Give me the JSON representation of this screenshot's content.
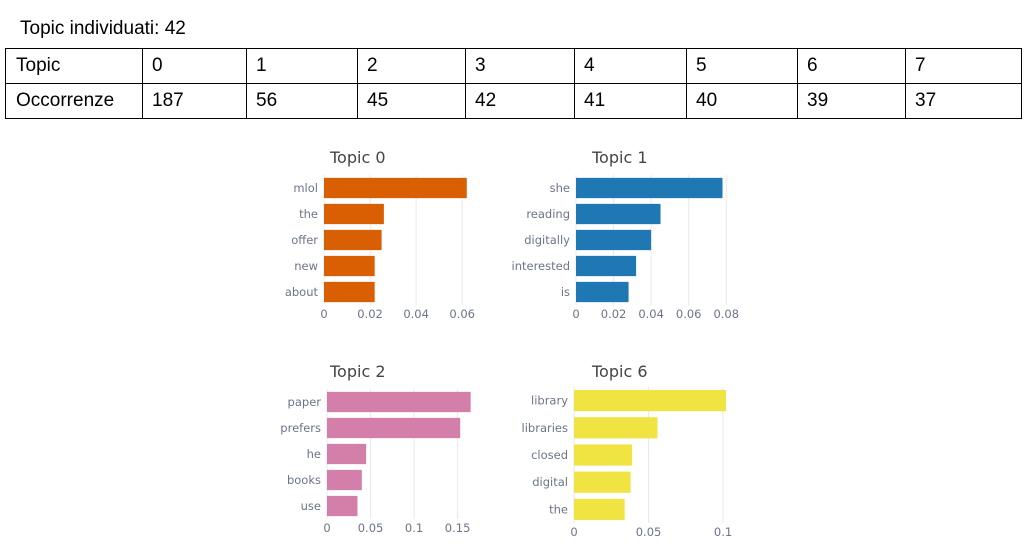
{
  "heading": "Topic  individuati: 42",
  "table": {
    "rows": [
      [
        "Topic",
        "0",
        "1",
        "2",
        "3",
        "4",
        "5",
        "6",
        "7"
      ],
      [
        "Occorrenze",
        "187",
        "56",
        "45",
        "42",
        "41",
        "40",
        "39",
        "37"
      ]
    ]
  },
  "chart_data": [
    {
      "type": "bar",
      "orientation": "horizontal",
      "title": "Topic 0",
      "color": "#d95f02",
      "categories": [
        "mlol",
        "the",
        "offer",
        "new",
        "about"
      ],
      "values": [
        0.062,
        0.026,
        0.025,
        0.022,
        0.022
      ],
      "xlim": [
        0,
        0.066
      ],
      "xticks": [
        "0",
        "0.02",
        "0.04",
        "0.06"
      ],
      "grid": true
    },
    {
      "type": "bar",
      "orientation": "horizontal",
      "title": "Topic 1",
      "color": "#1f78b4",
      "categories": [
        "she",
        "reading",
        "digitally",
        "interested",
        "is"
      ],
      "values": [
        0.078,
        0.045,
        0.04,
        0.032,
        0.028
      ],
      "xlim": [
        0,
        0.082
      ],
      "xticks": [
        "0",
        "0.02",
        "0.04",
        "0.06",
        "0.08"
      ],
      "grid": true
    },
    {
      "type": "bar",
      "orientation": "horizontal",
      "title": "Topic 2",
      "color": "#d47eaa",
      "categories": [
        "paper",
        "prefers",
        "he",
        "books",
        "use"
      ],
      "values": [
        0.165,
        0.153,
        0.045,
        0.04,
        0.035
      ],
      "xlim": [
        0,
        0.17
      ],
      "xticks": [
        "0",
        "0.05",
        "0.1",
        "0.15"
      ],
      "grid": true
    },
    {
      "type": "bar",
      "orientation": "horizontal",
      "title": "Topic 6",
      "color": "#f0e442",
      "categories": [
        "library",
        "libraries",
        "closed",
        "digital",
        "the"
      ],
      "values": [
        0.102,
        0.056,
        0.039,
        0.038,
        0.034
      ],
      "xlim": [
        0,
        0.106
      ],
      "xticks": [
        "0",
        "0.05",
        "0.1"
      ],
      "grid": true
    }
  ]
}
